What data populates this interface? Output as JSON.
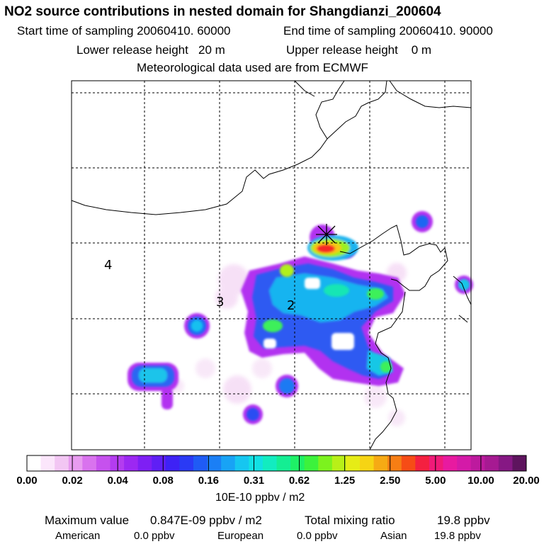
{
  "header": {
    "title": "NO2 source contributions in nested domain for Shangdianzi_200604",
    "start_time": "Start time of sampling 20060410. 60000",
    "end_time": "End time of sampling 20060410. 90000",
    "lower_height": "Lower release height   20 m",
    "upper_height": "Upper release height    0 m",
    "met_data": "Meteorological data used are from ECMWF"
  },
  "map": {
    "region_labels": [
      "4",
      "3",
      "2"
    ],
    "receptor_marker": "x-marker",
    "grid": "dashed"
  },
  "chart_data": {
    "type": "heatmap",
    "title": "NO2 source contributions in nested domain for Shangdianzi_200604",
    "colorbar": {
      "ticks": [
        "0.00",
        "0.02",
        "0.04",
        "0.08",
        "0.16",
        "0.31",
        "0.62",
        "1.25",
        "2.50",
        "5.00",
        "10.00",
        "20.00"
      ],
      "colors": [
        "#ffffff",
        "#fbe6fb",
        "#f2c6f3",
        "#e89cf0",
        "#d973ee",
        "#c651ee",
        "#b43cf0",
        "#9c28f2",
        "#7e1ff4",
        "#5f1ff5",
        "#3e22f5",
        "#2a3af5",
        "#1f5bf5",
        "#1b7ff5",
        "#18a3f5",
        "#16c6f0",
        "#12e0e3",
        "#12ecc0",
        "#14ee93",
        "#1ef066",
        "#3cf23c",
        "#7cf21e",
        "#b8f018",
        "#e6ec16",
        "#f6d414",
        "#f6aa14",
        "#f67e14",
        "#f64c16",
        "#f42040",
        "#f01a78",
        "#e81aa0",
        "#d41aa8",
        "#bd1a9e",
        "#a61a92",
        "#861884",
        "#5e145e"
      ],
      "unit": "10E-10 ppbv / m2"
    },
    "max_value": "0.847E-09 ppbv / m2",
    "total_mixing_ratio": "19.8 ppbv",
    "contributions": [
      {
        "region": "American",
        "value": "0.0 ppbv"
      },
      {
        "region": "European",
        "value": "0.0 ppbv"
      },
      {
        "region": "Asian",
        "value": "19.8 ppbv"
      }
    ]
  },
  "footer": {
    "max_label": "Maximum value",
    "max_value": "0.847E-09 ppbv / m2",
    "total_label": "Total mixing ratio",
    "total_value": "19.8 ppbv",
    "american_label": "American",
    "american_value": "0.0 ppbv",
    "european_label": "European",
    "european_value": "0.0 ppbv",
    "asian_label": "Asian",
    "asian_value": "19.8 ppbv"
  }
}
